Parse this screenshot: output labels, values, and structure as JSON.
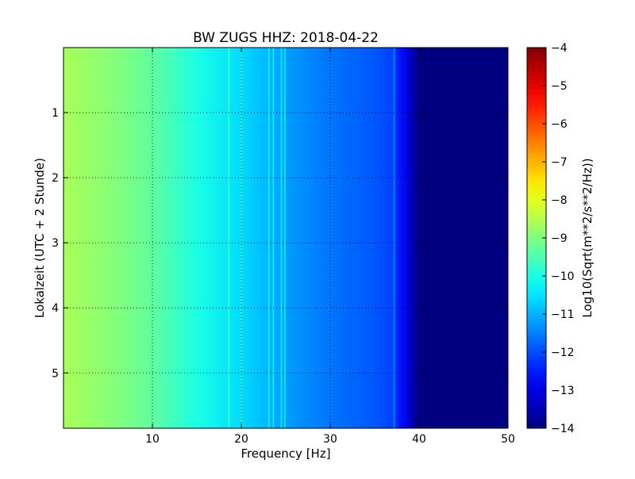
{
  "chart_data": {
    "type": "heatmap",
    "title": "BW ZUGS HHZ: 2018-04-22",
    "xlabel": "Frequency [Hz]",
    "ylabel": "Lokalzeit (UTC + 2 Stunde)",
    "xlim": [
      0,
      50
    ],
    "ylim": [
      5.85,
      0.0
    ],
    "xticks": [
      10,
      20,
      30,
      40,
      50
    ],
    "xtick_labels": [
      "10",
      "20",
      "30",
      "40",
      "50"
    ],
    "yticks": [
      1,
      2,
      3,
      4,
      5
    ],
    "ytick_labels": [
      "1",
      "2",
      "3",
      "4",
      "5"
    ],
    "grid": true,
    "colormap": "jet",
    "colorbar": {
      "label": "Log10(Sqrt(m**2/s**2/Hz))",
      "range": [
        -14,
        -4
      ],
      "ticks": [
        -4,
        -5,
        -6,
        -7,
        -8,
        -9,
        -10,
        -11,
        -12,
        -13,
        -14
      ],
      "tick_labels": [
        "−4",
        "−5",
        "−6",
        "−7",
        "−8",
        "−9",
        "−10",
        "−11",
        "−12",
        "−13",
        "−14"
      ]
    },
    "spectral_profile": {
      "frequency_hz": [
        0,
        5,
        10,
        15,
        20,
        25,
        30,
        35,
        37,
        38,
        39,
        40,
        50
      ],
      "log10_amplitude": [
        -8.6,
        -8.9,
        -9.3,
        -10.0,
        -10.6,
        -11.2,
        -11.6,
        -11.9,
        -12.1,
        -12.6,
        -13.3,
        -14,
        -14
      ]
    },
    "spectral_lines_hz": [
      18.6,
      20.0,
      23.1,
      23.6,
      24.5,
      24.9,
      37.2
    ]
  }
}
